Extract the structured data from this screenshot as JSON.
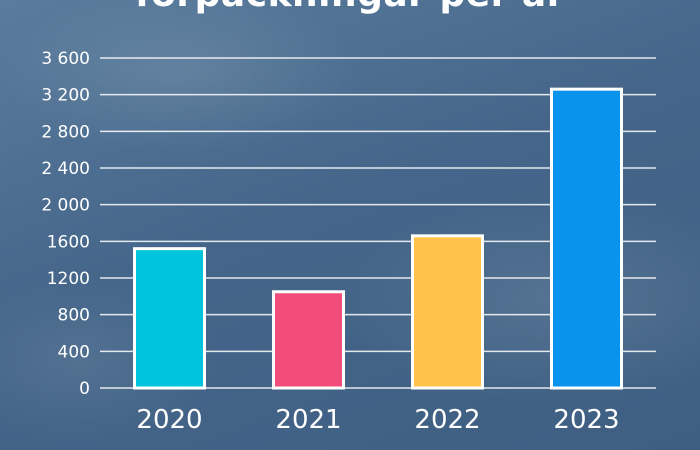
{
  "chart_data": {
    "type": "bar",
    "title": "förpackningar per år",
    "xlabel": "",
    "ylabel": "",
    "categories": [
      "2020",
      "2021",
      "2022",
      "2023"
    ],
    "values": [
      1520,
      1050,
      1660,
      3260
    ],
    "ylim": [
      0,
      3600
    ],
    "yticks": [
      0,
      400,
      800,
      1200,
      1600,
      2000,
      2400,
      2800,
      3200,
      3600
    ],
    "ytick_labels": [
      "0",
      "400",
      "800",
      "1200",
      "1600",
      "2 000",
      "2 400",
      "2 800",
      "3 200",
      "3 600"
    ],
    "bar_colors": [
      "#00c4dc",
      "#f24d7a",
      "#ffc24a",
      "#0a93ec"
    ],
    "grid": true,
    "legend": "none"
  }
}
